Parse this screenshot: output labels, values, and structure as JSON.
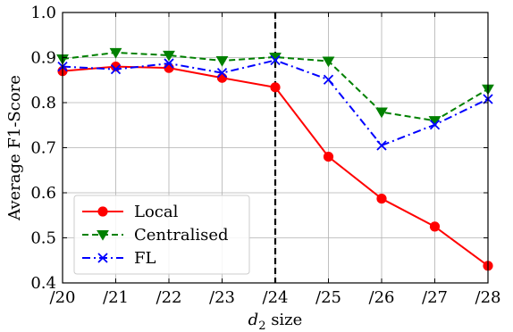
{
  "chart_data": {
    "type": "line",
    "xlabel_main": "d",
    "xlabel_sub": "2",
    "xlabel_suffix": " size",
    "ylabel": "Average F1-Score",
    "categories": [
      "/20",
      "/21",
      "/22",
      "/23",
      "/24",
      "/25",
      "/26",
      "/27",
      "/28"
    ],
    "ylim": [
      0.4,
      1.0
    ],
    "yticks": [
      "0.4",
      "0.5",
      "0.6",
      "0.7",
      "0.8",
      "0.9",
      "1.0"
    ],
    "grid": true,
    "reference_line": {
      "category": "/24",
      "style": "dashed",
      "color": "#000000"
    },
    "legend_position": "lower-left",
    "series": [
      {
        "name": "Local",
        "color": "#ff0000",
        "line_style": "solid",
        "marker": "circle",
        "values": [
          0.87,
          0.88,
          0.877,
          0.855,
          0.834,
          0.68,
          0.587,
          0.525,
          0.438
        ]
      },
      {
        "name": "Centralised",
        "color": "#008000",
        "line_style": "dashed",
        "marker": "triangle-down",
        "values": [
          0.897,
          0.911,
          0.905,
          0.893,
          0.901,
          0.892,
          0.779,
          0.76,
          0.83
        ]
      },
      {
        "name": "FL",
        "color": "#0000ff",
        "line_style": "dashdot",
        "marker": "x",
        "values": [
          0.88,
          0.874,
          0.887,
          0.866,
          0.894,
          0.851,
          0.705,
          0.751,
          0.808
        ]
      }
    ]
  }
}
